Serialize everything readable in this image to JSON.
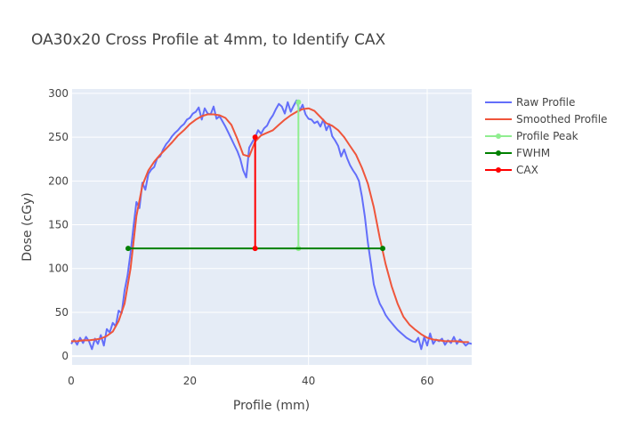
{
  "chart_data": {
    "type": "line",
    "title": "OA30x20 Cross Profile at 4mm, to Identify CAX",
    "xlabel": "Profile (mm)",
    "ylabel": "Dose (cGy)",
    "xlim": [
      0,
      67.5
    ],
    "ylim": [
      -10,
      305
    ],
    "xticks": [
      0,
      20,
      40,
      60
    ],
    "yticks": [
      0,
      50,
      100,
      150,
      200,
      250,
      300
    ],
    "grid": true,
    "legend_position": "top-right",
    "series": [
      {
        "name": "Raw Profile",
        "color": "#636efa",
        "x": [
          0,
          0.5,
          1,
          1.5,
          2,
          2.5,
          3,
          3.5,
          4,
          4.5,
          5,
          5.5,
          6,
          6.5,
          7,
          7.5,
          8,
          8.5,
          9,
          9.5,
          10,
          10.5,
          11,
          11.5,
          12,
          12.5,
          13,
          13.5,
          14,
          14.5,
          15,
          15.5,
          16,
          16.5,
          17,
          17.5,
          18,
          18.5,
          19,
          19.5,
          20,
          20.5,
          21,
          21.5,
          22,
          22.5,
          23,
          23.5,
          24,
          24.5,
          25,
          25.5,
          26,
          26.5,
          27,
          27.5,
          28,
          28.5,
          29,
          29.5,
          30,
          30.5,
          31,
          31.5,
          32,
          32.5,
          33,
          33.5,
          34,
          34.5,
          35,
          35.5,
          36,
          36.5,
          37,
          37.5,
          38,
          38.5,
          39,
          39.5,
          40,
          40.5,
          41,
          41.5,
          42,
          42.5,
          43,
          43.5,
          44,
          44.5,
          45,
          45.5,
          46,
          46.5,
          47,
          47.5,
          48,
          48.5,
          49,
          49.5,
          50,
          50.5,
          51,
          51.5,
          52,
          52.5,
          53,
          53.5,
          54,
          54.5,
          55,
          55.5,
          56,
          56.5,
          57,
          57.5,
          58,
          58.5,
          59,
          59.5,
          60,
          60.5,
          61,
          61.5,
          62,
          62.5,
          63,
          63.5,
          64,
          64.5,
          65,
          65.5,
          66,
          66.5,
          67,
          67.5
        ],
        "y": [
          14,
          19,
          13,
          21,
          15,
          22,
          17,
          8,
          20,
          14,
          24,
          12,
          31,
          27,
          38,
          34,
          52,
          49,
          75,
          92,
          118,
          148,
          176,
          169,
          198,
          190,
          208,
          213,
          216,
          226,
          228,
          236,
          242,
          246,
          251,
          255,
          258,
          262,
          265,
          270,
          272,
          277,
          279,
          284,
          270,
          283,
          277,
          276,
          285,
          271,
          274,
          268,
          262,
          255,
          248,
          241,
          234,
          225,
          212,
          204,
          238,
          244,
          250,
          258,
          254,
          260,
          263,
          270,
          275,
          282,
          288,
          285,
          277,
          290,
          279,
          286,
          292,
          280,
          287,
          276,
          271,
          270,
          266,
          268,
          262,
          270,
          258,
          265,
          251,
          246,
          240,
          228,
          236,
          226,
          218,
          212,
          207,
          200,
          182,
          159,
          130,
          106,
          82,
          70,
          60,
          54,
          47,
          42,
          38,
          34,
          30,
          27,
          24,
          21,
          19,
          17,
          16,
          21,
          8,
          22,
          12,
          26,
          14,
          19,
          17,
          20,
          13,
          18,
          15,
          22,
          14,
          19,
          16,
          12,
          15,
          14
        ]
      },
      {
        "name": "Smoothed Profile",
        "color": "#ef553b",
        "x": [
          0,
          1,
          2,
          3,
          4,
          5,
          6,
          7,
          8,
          9,
          10,
          11,
          12,
          13,
          14,
          15,
          16,
          17,
          18,
          19,
          20,
          21,
          22,
          23,
          24,
          25,
          26,
          27,
          28,
          29,
          30,
          31,
          32,
          33,
          34,
          35,
          36,
          37,
          38,
          39,
          40,
          41,
          42,
          43,
          44,
          45,
          46,
          47,
          48,
          49,
          50,
          51,
          52,
          53,
          54,
          55,
          56,
          57,
          58,
          59,
          60,
          61,
          62,
          63,
          64,
          65,
          66,
          67
        ],
        "y": [
          17,
          17,
          18,
          18,
          19,
          20,
          23,
          28,
          40,
          60,
          100,
          160,
          195,
          212,
          222,
          230,
          237,
          244,
          252,
          258,
          265,
          270,
          274,
          276,
          276,
          275,
          272,
          264,
          248,
          230,
          228,
          245,
          252,
          255,
          258,
          264,
          270,
          275,
          279,
          282,
          283,
          280,
          273,
          266,
          263,
          258,
          250,
          240,
          230,
          215,
          197,
          170,
          135,
          105,
          80,
          60,
          45,
          36,
          30,
          25,
          21,
          19,
          18,
          17,
          17,
          17,
          16,
          16
        ]
      },
      {
        "name": "Profile Peak",
        "color": "#90ee90",
        "x": [
          38.3,
          38.3
        ],
        "y": [
          123,
          290
        ]
      },
      {
        "name": "FWHM",
        "color": "#008000",
        "x": [
          9.6,
          52.5
        ],
        "y": [
          123,
          123
        ]
      },
      {
        "name": "CAX",
        "color": "#ff0000",
        "x": [
          31.0,
          31.0
        ],
        "y": [
          123,
          250
        ]
      }
    ]
  }
}
